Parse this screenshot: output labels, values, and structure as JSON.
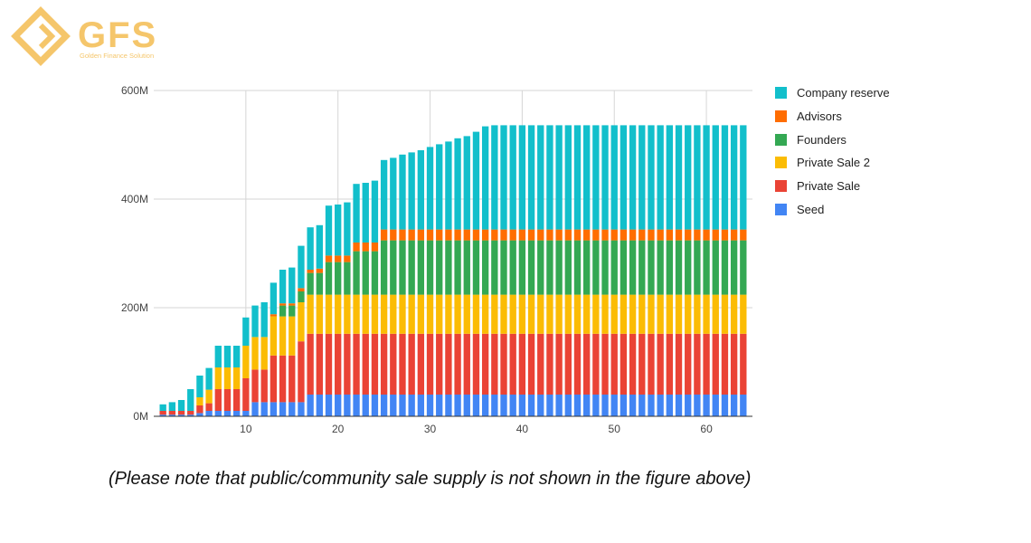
{
  "logo": {
    "brand": "GFS",
    "tagline": "Golden Finance Solution",
    "color": "#f5c66b"
  },
  "footnote": "(Please note that public/community sale supply is not shown in the figure above)",
  "chart_data": {
    "type": "bar",
    "stacked": true,
    "x": [
      1,
      2,
      3,
      4,
      5,
      6,
      7,
      8,
      9,
      10,
      11,
      12,
      13,
      14,
      15,
      16,
      17,
      18,
      19,
      20,
      21,
      22,
      23,
      24,
      25,
      26,
      27,
      28,
      29,
      30,
      31,
      32,
      33,
      34,
      35,
      36,
      37,
      38,
      39,
      40,
      41,
      42,
      43,
      44,
      45,
      46,
      47,
      48,
      49,
      50,
      51,
      52,
      53,
      54,
      55,
      56,
      57,
      58,
      59,
      60,
      61,
      62,
      63,
      64
    ],
    "xticks": [
      10,
      20,
      30,
      40,
      50,
      60
    ],
    "xtick_labels": [
      "10",
      "20",
      "30",
      "40",
      "50",
      "60"
    ],
    "xlim": [
      0,
      65
    ],
    "ylim": [
      0,
      600
    ],
    "yticks": [
      0,
      200,
      400,
      600
    ],
    "ytick_labels": [
      "0M",
      "200M",
      "400M",
      "600M"
    ],
    "grid": true,
    "legend_position": "right",
    "series": [
      {
        "name": "Seed",
        "color": "#4285f4",
        "values": [
          3,
          3,
          3,
          3,
          6,
          10,
          10,
          10,
          10,
          10,
          26,
          26,
          26,
          26,
          26,
          26,
          40,
          40,
          40,
          40,
          40,
          40,
          40,
          40,
          40,
          40,
          40,
          40,
          40,
          40,
          40,
          40,
          40,
          40,
          40,
          40,
          40,
          40,
          40,
          40,
          40,
          40,
          40,
          40,
          40,
          40,
          40,
          40,
          40,
          40,
          40,
          40,
          40,
          40,
          40,
          40,
          40,
          40,
          40,
          40,
          40,
          40,
          40,
          40
        ]
      },
      {
        "name": "Private Sale",
        "color": "#ea4335",
        "values": [
          7,
          7,
          7,
          7,
          14,
          14,
          40,
          40,
          40,
          60,
          60,
          60,
          86,
          86,
          86,
          112,
          112,
          112,
          112,
          112,
          112,
          112,
          112,
          112,
          112,
          112,
          112,
          112,
          112,
          112,
          112,
          112,
          112,
          112,
          112,
          112,
          112,
          112,
          112,
          112,
          112,
          112,
          112,
          112,
          112,
          112,
          112,
          112,
          112,
          112,
          112,
          112,
          112,
          112,
          112,
          112,
          112,
          112,
          112,
          112,
          112,
          112,
          112,
          112
        ]
      },
      {
        "name": "Private Sale 2",
        "color": "#fbbc04",
        "values": [
          0,
          0,
          0,
          0,
          15,
          25,
          40,
          40,
          40,
          60,
          60,
          60,
          72,
          72,
          72,
          72,
          72,
          72,
          72,
          72,
          72,
          72,
          72,
          72,
          72,
          72,
          72,
          72,
          72,
          72,
          72,
          72,
          72,
          72,
          72,
          72,
          72,
          72,
          72,
          72,
          72,
          72,
          72,
          72,
          72,
          72,
          72,
          72,
          72,
          72,
          72,
          72,
          72,
          72,
          72,
          72,
          72,
          72,
          72,
          72,
          72,
          72,
          72,
          72
        ]
      },
      {
        "name": "Founders",
        "color": "#34a853",
        "values": [
          0,
          0,
          0,
          0,
          0,
          0,
          0,
          0,
          0,
          0,
          0,
          0,
          0,
          20,
          20,
          20,
          40,
          40,
          60,
          60,
          60,
          80,
          80,
          80,
          100,
          100,
          100,
          100,
          100,
          100,
          100,
          100,
          100,
          100,
          100,
          100,
          100,
          100,
          100,
          100,
          100,
          100,
          100,
          100,
          100,
          100,
          100,
          100,
          100,
          100,
          100,
          100,
          100,
          100,
          100,
          100,
          100,
          100,
          100,
          100,
          100,
          100,
          100,
          100
        ]
      },
      {
        "name": "Advisors",
        "color": "#ff6d01",
        "values": [
          0,
          0,
          0,
          0,
          0,
          0,
          0,
          0,
          0,
          0,
          0,
          0,
          4,
          4,
          4,
          6,
          6,
          8,
          12,
          12,
          12,
          16,
          16,
          16,
          20,
          20,
          20,
          20,
          20,
          20,
          20,
          20,
          20,
          20,
          20,
          20,
          20,
          20,
          20,
          20,
          20,
          20,
          20,
          20,
          20,
          20,
          20,
          20,
          20,
          20,
          20,
          20,
          20,
          20,
          20,
          20,
          20,
          20,
          20,
          20,
          20,
          20,
          20,
          20
        ]
      },
      {
        "name": "Company reserve",
        "color": "#12bfcb",
        "values": [
          12,
          16,
          20,
          40,
          40,
          40,
          40,
          40,
          40,
          52,
          58,
          64,
          58,
          62,
          66,
          78,
          78,
          80,
          92,
          94,
          98,
          108,
          110,
          114,
          128,
          132,
          138,
          142,
          146,
          152,
          157,
          162,
          168,
          172,
          180,
          190,
          192,
          192,
          192,
          192,
          192,
          192,
          192,
          192,
          192,
          192,
          192,
          192,
          192,
          192,
          192,
          192,
          192,
          192,
          192,
          192,
          192,
          192,
          192,
          192,
          192,
          192,
          192,
          192
        ]
      }
    ]
  }
}
